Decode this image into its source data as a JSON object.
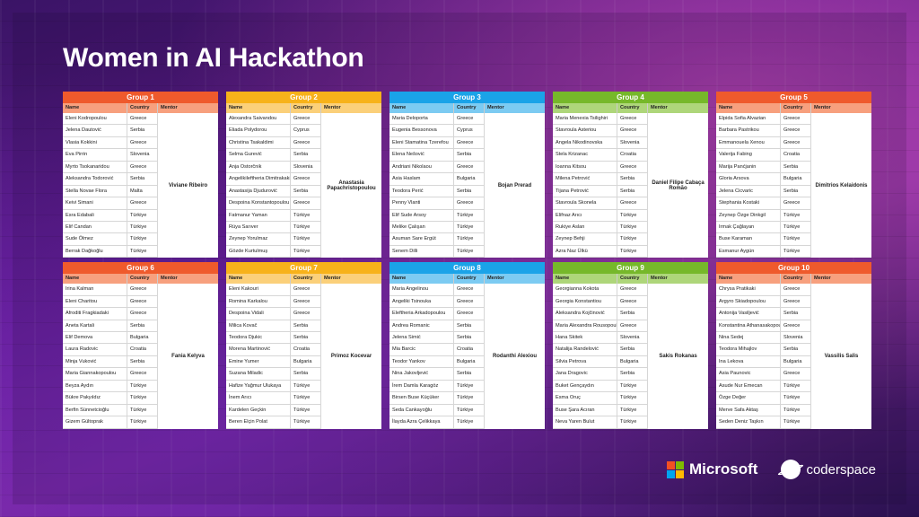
{
  "title": "Women in AI Hackathon",
  "columns": {
    "name": "Name",
    "country": "Country",
    "mentor": "Mentor"
  },
  "brands": {
    "microsoft": "Microsoft",
    "coderspace": "coderspace"
  },
  "colors": {
    "g1_head": "#ef5a2c",
    "g1_cols": "#f7a07e",
    "g2_head": "#f7b21a",
    "g2_cols": "#fbd07a",
    "g3_head": "#1aa3e8",
    "g3_cols": "#7ccbf2",
    "g4_head": "#76b82a",
    "g4_cols": "#aed67a",
    "ms_red": "#f25022",
    "ms_green": "#7fba00",
    "ms_blue": "#00a4ef",
    "ms_yellow": "#ffb900"
  },
  "groups": [
    {
      "title": "Group 1",
      "mentor": "Viviane Ribeiro",
      "rows": [
        [
          "Eleni Kodropoulou",
          "Greece"
        ],
        [
          "Jelena Dautović",
          "Serbia"
        ],
        [
          "Vlasia Kokkini",
          "Greece"
        ],
        [
          "Eva Pirrin",
          "Slovenia"
        ],
        [
          "Myrto Tsokanaridou",
          "Greece"
        ],
        [
          "Aleksandra Todorović",
          "Serbia"
        ],
        [
          "Stella Novae Flora",
          "Malta"
        ],
        [
          "Keivi Simani",
          "Greece"
        ],
        [
          "Esra Edabali",
          "Türkiye"
        ],
        [
          "Elif Candan",
          "Türkiye"
        ],
        [
          "Sude Ölmez",
          "Türkiye"
        ],
        [
          "Berrak Dağkoğlu",
          "Türkiye"
        ]
      ]
    },
    {
      "title": "Group 2",
      "mentor": "Anastasia Papachristopoulou",
      "rows": [
        [
          "Alexandra Saivandou",
          "Greece"
        ],
        [
          "Eliada Polydorou",
          "Cyprus"
        ],
        [
          "Christina Tsakaldimi",
          "Greece"
        ],
        [
          "Selma Gurević",
          "Serbia"
        ],
        [
          "Anja Ostorčnik",
          "Slovenia"
        ],
        [
          "Angelikileftheria Dimitrakaki",
          "Greece"
        ],
        [
          "Anastasija Djudurović",
          "Serbia"
        ],
        [
          "Despoina Konstantopoulou",
          "Greece"
        ],
        [
          "Fatmanur Yaman",
          "Türkiye"
        ],
        [
          "Rüya Sarıver",
          "Türkiye"
        ],
        [
          "Zeynep Yorulmaz",
          "Türkiye"
        ],
        [
          "Gözde Kurtulmuş",
          "Türkiye"
        ]
      ]
    },
    {
      "title": "Group 3",
      "mentor": "Bojan Prerad",
      "rows": [
        [
          "Maria Deloporta",
          "Greece"
        ],
        [
          "Eugenia Bessonova",
          "Cyprus"
        ],
        [
          "Eleni Stamatina Tzerefou",
          "Greece"
        ],
        [
          "Elena Nešović",
          "Serbia"
        ],
        [
          "Andriani Nikolaou",
          "Greece"
        ],
        [
          "Asia Haslam",
          "Bulgaria"
        ],
        [
          "Teodora Perić",
          "Serbia"
        ],
        [
          "Penny Vlanti",
          "Greece"
        ],
        [
          "Elif Sude Arsoy",
          "Türkiye"
        ],
        [
          "Melike Çalışan",
          "Türkiye"
        ],
        [
          "Asuman Sare Ergüt",
          "Türkiye"
        ],
        [
          "Senem Dilli",
          "Türkiye"
        ]
      ]
    },
    {
      "title": "Group 4",
      "mentor": "Daniel Filipe Cabaça Romão",
      "rows": [
        [
          "Maria Menexia Tsilighiri",
          "Greece"
        ],
        [
          "Stavroula Asteriou",
          "Greece"
        ],
        [
          "Angela Nikodinovska",
          "Slovenia"
        ],
        [
          "Stela Krizanac",
          "Croatia"
        ],
        [
          "Ioanna Kitsou",
          "Greece"
        ],
        [
          "Milena Petrović",
          "Serbia"
        ],
        [
          "Tijana Petrović",
          "Serbia"
        ],
        [
          "Stavroula Skonela",
          "Greece"
        ],
        [
          "Elifnaz Arıcı",
          "Türkiye"
        ],
        [
          "Rukiye Aslan",
          "Türkiye"
        ],
        [
          "Zeynep Behji",
          "Türkiye"
        ],
        [
          "Azra Naz Ülkü",
          "Türkiye"
        ]
      ]
    },
    {
      "title": "Group 5",
      "mentor": "Dimitrios Kelaidonis",
      "rows": [
        [
          "Elpida Sofia Alvazian",
          "Greece"
        ],
        [
          "Barbara Pastrikou",
          "Greece"
        ],
        [
          "Emmanouela Xenou",
          "Greece"
        ],
        [
          "Valerija Fabing",
          "Croatia"
        ],
        [
          "Marija Panćjanin",
          "Serbia"
        ],
        [
          "Gloria Arsova",
          "Bulgaria"
        ],
        [
          "Jelena Cicvaric",
          "Serbia"
        ],
        [
          "Stephania Kostaki",
          "Greece"
        ],
        [
          "Zeynep Özge Dinkgil",
          "Türkiye"
        ],
        [
          "Irmak Çağlayan",
          "Türkiye"
        ],
        [
          "Buse Karaman",
          "Türkiye"
        ],
        [
          "Esmanur Aygün",
          "Türkiye"
        ]
      ]
    },
    {
      "title": "Group 6",
      "mentor": "Fania Kelyva",
      "rows": [
        [
          "Irina Kalman",
          "Greece"
        ],
        [
          "Eleni Charitou",
          "Greece"
        ],
        [
          "Afroditi Fragkiadaki",
          "Greece"
        ],
        [
          "Aneta Kartali",
          "Serbia"
        ],
        [
          "Elif Demova",
          "Bulgaria"
        ],
        [
          "Laura Radovic",
          "Croatia"
        ],
        [
          "Minja Vuković",
          "Serbia"
        ],
        [
          "Maria Giannakopoulou",
          "Greece"
        ],
        [
          "Beyza Aydın",
          "Türkiye"
        ],
        [
          "Bükre Pakyıldız",
          "Türkiye"
        ],
        [
          "Berfin Sünnetcioğlu",
          "Türkiye"
        ],
        [
          "Gizem Gültoprak",
          "Türkiye"
        ]
      ]
    },
    {
      "title": "Group 7",
      "mentor": "Primoz Kocevar",
      "rows": [
        [
          "Eleni Kakouri",
          "Greece"
        ],
        [
          "Romina Karkalou",
          "Greece"
        ],
        [
          "Despoina Vidali",
          "Greece"
        ],
        [
          "Milica Kovač",
          "Serbia"
        ],
        [
          "Teodora Djukic",
          "Serbia"
        ],
        [
          "Morena Martinović",
          "Croatia"
        ],
        [
          "Emine Yumer",
          "Bulgaria"
        ],
        [
          "Suzana Miladic",
          "Serbia"
        ],
        [
          "Hafize Yağmur Ulukaya",
          "Türkiye"
        ],
        [
          "İnem Arıcı",
          "Türkiye"
        ],
        [
          "Kardelen Geçkin",
          "Türkiye"
        ],
        [
          "Beren Elçin Polat",
          "Türkiye"
        ]
      ]
    },
    {
      "title": "Group 8",
      "mentor": "Rodanthi Alexiou",
      "rows": [
        [
          "Maria Angelinou",
          "Greece"
        ],
        [
          "Angeliki Tsinouka",
          "Greece"
        ],
        [
          "Eleftheria Arkadopoulou",
          "Greece"
        ],
        [
          "Andrea Romanic",
          "Serbia"
        ],
        [
          "Jelena Simić",
          "Serbia"
        ],
        [
          "Mia Barcic",
          "Croatia"
        ],
        [
          "Teodor Yankov",
          "Bulgaria"
        ],
        [
          "Nina Jakovljević",
          "Serbia"
        ],
        [
          "İrem Damla Karagöz",
          "Türkiye"
        ],
        [
          "Birsen Buse Küçüker",
          "Türkiye"
        ],
        [
          "Seda Cankayoğlu",
          "Türkiye"
        ],
        [
          "İlayda Azra Çelikkaya",
          "Türkiye"
        ]
      ]
    },
    {
      "title": "Group 9",
      "mentor": "Sakis Rokanas",
      "rows": [
        [
          "Georgianna Kokota",
          "Greece"
        ],
        [
          "Georgia Konstantiou",
          "Greece"
        ],
        [
          "Aleksandra Kojčinović",
          "Serbia"
        ],
        [
          "Maria Alexandra Rousopoulou",
          "Greece"
        ],
        [
          "Hana Skitek",
          "Slovenia"
        ],
        [
          "Natalija Randelović",
          "Serbia"
        ],
        [
          "Silvia Petrova",
          "Bulgaria"
        ],
        [
          "Jana Dragovic",
          "Serbia"
        ],
        [
          "Buket Gençaydın",
          "Türkiye"
        ],
        [
          "Esma Oruç",
          "Türkiye"
        ],
        [
          "Buse Şara Acıran",
          "Türkiye"
        ],
        [
          "Neva Yaren Bulut",
          "Türkiye"
        ]
      ]
    },
    {
      "title": "Group 10",
      "mentor": "Vassilis Salis",
      "rows": [
        [
          "Chrysa Pratikaki",
          "Greece"
        ],
        [
          "Argyro Skiadopoulou",
          "Greece"
        ],
        [
          "Antonija Vasiljević",
          "Serbia"
        ],
        [
          "Konstantina Athanasakopoulou",
          "Greece"
        ],
        [
          "Nina Sedej",
          "Slovenia"
        ],
        [
          "Teodora Mihajlov",
          "Serbia"
        ],
        [
          "Ina Lekova",
          "Bulgaria"
        ],
        [
          "Asia Paunovic",
          "Greece"
        ],
        [
          "Asude Nur Emecan",
          "Türkiye"
        ],
        [
          "Özge Değer",
          "Türkiye"
        ],
        [
          "Merve Safa Aktaş",
          "Türkiye"
        ],
        [
          "Seden Deniz Taşkın",
          "Türkiye"
        ]
      ]
    }
  ]
}
